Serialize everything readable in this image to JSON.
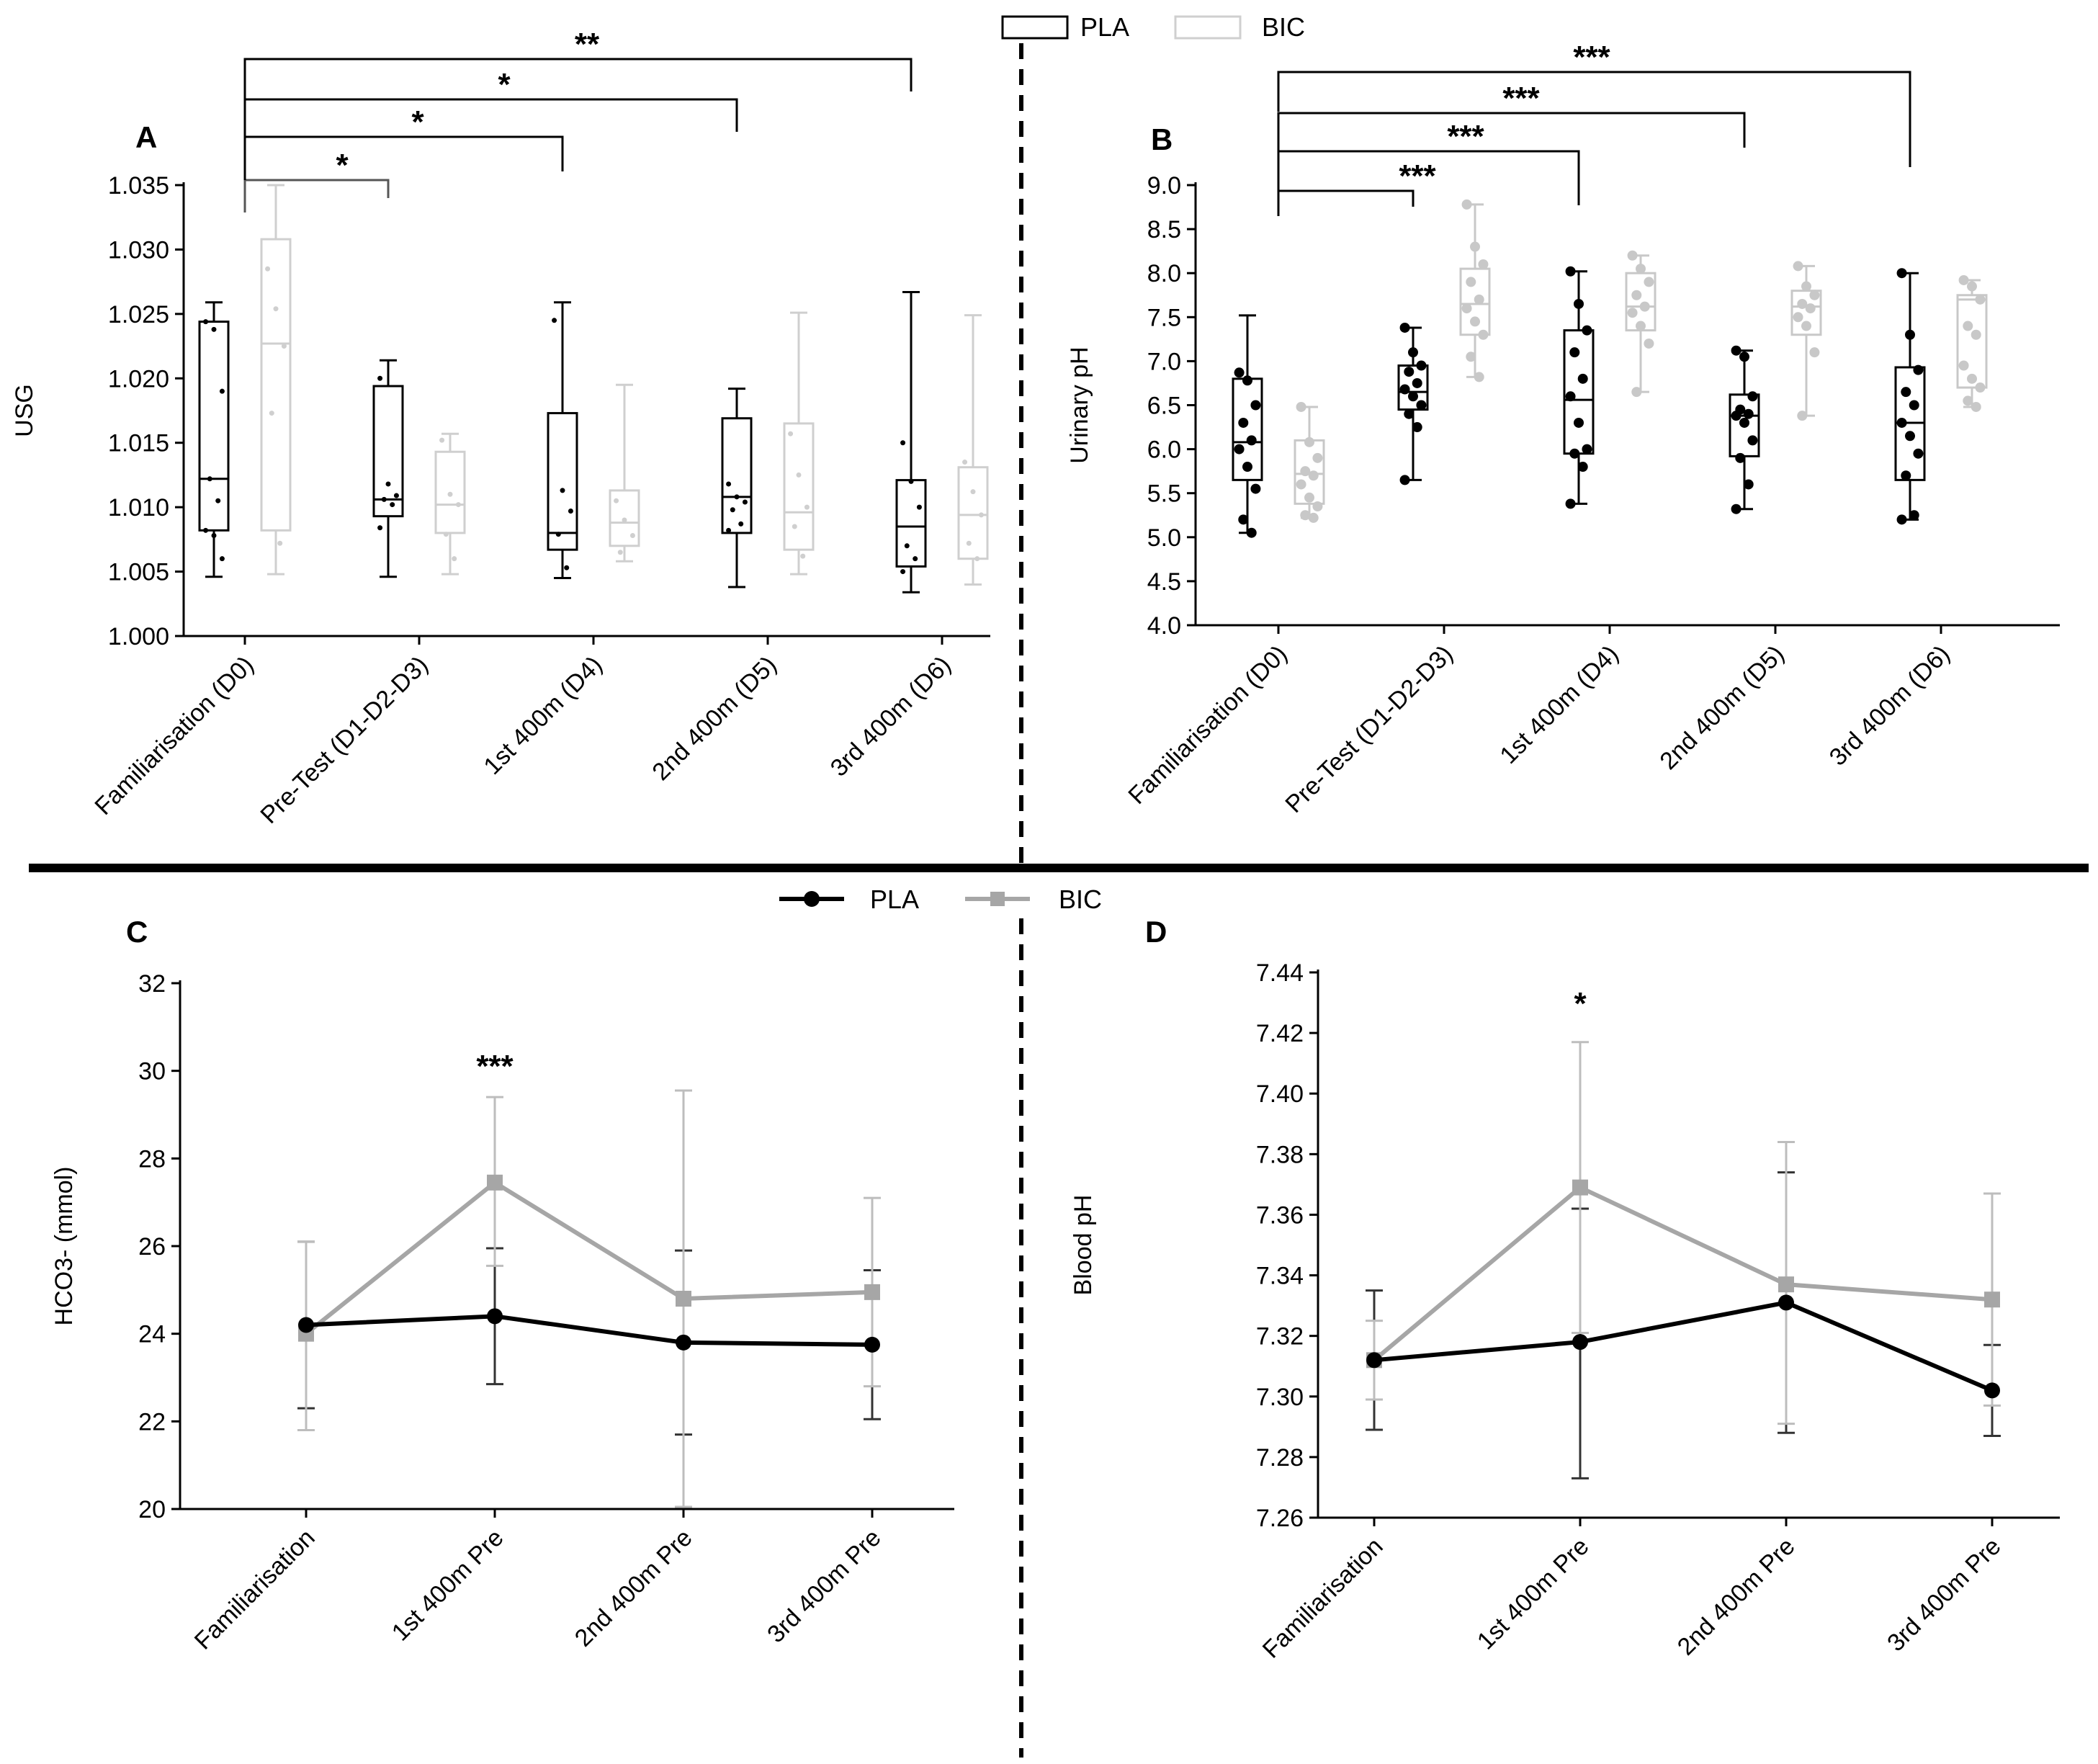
{
  "legend_box": {
    "items": [
      {
        "name": "PLA",
        "color": "#000000"
      },
      {
        "name": "BIC",
        "color": "#cfcfcf"
      }
    ]
  },
  "legend_line": {
    "items": [
      {
        "name": "PLA",
        "color": "#000000",
        "marker": "circle"
      },
      {
        "name": "BIC",
        "color": "#a6a6a6",
        "marker": "square"
      }
    ]
  },
  "chart_data": [
    {
      "id": "A",
      "panel_label": "A",
      "type": "box",
      "ylabel": "USG",
      "xlabel": "",
      "ylim": [
        1.0,
        1.035
      ],
      "yticks": [
        "1.000",
        "1.005",
        "1.010",
        "1.015",
        "1.020",
        "1.025",
        "1.030",
        "1.035"
      ],
      "categories": [
        "Familiarisation (D0)",
        "Pre-Test (D1-D2-D3)",
        "1st 400m (D4)",
        "2nd 400m (D5)",
        "3rd 400m (D6)"
      ],
      "series": [
        {
          "name": "PLA",
          "color": "#000000",
          "boxes": [
            {
              "min": 1.0046,
              "q1": 1.0082,
              "median": 1.0122,
              "q3": 1.0244,
              "max": 1.0259,
              "points": [
                1.0244,
                1.0238,
                1.019,
                1.0122,
                1.0105,
                1.0082,
                1.0078,
                1.006
              ]
            },
            {
              "min": 1.0046,
              "q1": 1.0093,
              "median": 1.0106,
              "q3": 1.0194,
              "max": 1.0214,
              "points": [
                1.02,
                1.0118,
                1.0109,
                1.0106,
                1.0102,
                1.0084
              ]
            },
            {
              "min": 1.0045,
              "q1": 1.0067,
              "median": 1.008,
              "q3": 1.0173,
              "max": 1.0259,
              "points": [
                1.0245,
                1.0113,
                1.0097,
                1.0079,
                1.0053
              ]
            },
            {
              "min": 1.0038,
              "q1": 1.008,
              "median": 1.0108,
              "q3": 1.0169,
              "max": 1.0192,
              "points": [
                1.0118,
                1.0108,
                1.0104,
                1.0098,
                1.0087,
                1.0082
              ]
            },
            {
              "min": 1.0034,
              "q1": 1.0054,
              "median": 1.0085,
              "q3": 1.0121,
              "max": 1.0267,
              "points": [
                1.015,
                1.012,
                1.01,
                1.007,
                1.006,
                1.005
              ]
            }
          ]
        },
        {
          "name": "BIC",
          "color": "#cfcfcf",
          "boxes": [
            {
              "min": 1.0048,
              "q1": 1.0082,
              "median": 1.0227,
              "q3": 1.0308,
              "max": 1.035,
              "points": [
                1.0285,
                1.0254,
                1.0225,
                1.0173,
                1.0072
              ]
            },
            {
              "min": 1.0048,
              "q1": 1.008,
              "median": 1.0102,
              "q3": 1.0143,
              "max": 1.0157,
              "points": [
                1.0152,
                1.011,
                1.0102,
                1.0079,
                1.006
              ]
            },
            {
              "min": 1.0058,
              "q1": 1.007,
              "median": 1.0088,
              "q3": 1.0113,
              "max": 1.0195,
              "points": [
                1.0105,
                1.009,
                1.0078,
                1.0065
              ]
            },
            {
              "min": 1.0048,
              "q1": 1.0067,
              "median": 1.0096,
              "q3": 1.0165,
              "max": 1.0251,
              "points": [
                1.0157,
                1.0125,
                1.01,
                1.0085,
                1.0062
              ]
            },
            {
              "min": 1.004,
              "q1": 1.006,
              "median": 1.0094,
              "q3": 1.0131,
              "max": 1.0249,
              "points": [
                1.0135,
                1.0112,
                1.0094,
                1.0072,
                1.006
              ]
            }
          ]
        }
      ],
      "annotations": [
        {
          "from": 0,
          "to": 1,
          "label": "*"
        },
        {
          "from": 0,
          "to": 2,
          "label": "*"
        },
        {
          "from": 0,
          "to": 3,
          "label": "*"
        },
        {
          "from": 0,
          "to": 4,
          "label": "**"
        }
      ]
    },
    {
      "id": "B",
      "panel_label": "B",
      "type": "box",
      "ylabel": "Urinary pH",
      "xlabel": "",
      "ylim": [
        4.0,
        9.0
      ],
      "yticks": [
        "4.0",
        "4.5",
        "5.0",
        "5.5",
        "6.0",
        "6.5",
        "7.0",
        "7.5",
        "8.0",
        "8.5",
        "9.0"
      ],
      "categories": [
        "Familiarisation (D0)",
        "Pre-Test (D1-D2-D3)",
        "1st 400m (D4)",
        "2nd 400m (D5)",
        "3rd 400m (D6)"
      ],
      "series": [
        {
          "name": "PLA",
          "color": "#000000",
          "boxes": [
            {
              "min": 5.05,
              "q1": 5.65,
              "median": 6.08,
              "q3": 6.8,
              "max": 7.52,
              "points": [
                6.87,
                6.78,
                6.5,
                6.3,
                6.1,
                6.0,
                5.8,
                5.55,
                5.2,
                5.05
              ]
            },
            {
              "min": 5.65,
              "q1": 6.45,
              "median": 6.65,
              "q3": 6.95,
              "max": 7.38,
              "points": [
                7.38,
                7.1,
                6.95,
                6.88,
                6.75,
                6.68,
                6.6,
                6.5,
                6.4,
                6.25,
                5.65
              ]
            },
            {
              "min": 5.38,
              "q1": 5.95,
              "median": 6.56,
              "q3": 7.35,
              "max": 8.02,
              "points": [
                8.02,
                7.65,
                7.35,
                7.1,
                6.8,
                6.6,
                6.3,
                6.0,
                5.95,
                5.8,
                5.38
              ]
            },
            {
              "min": 5.32,
              "q1": 5.92,
              "median": 6.38,
              "q3": 6.62,
              "max": 7.12,
              "points": [
                7.12,
                7.05,
                6.6,
                6.45,
                6.4,
                6.38,
                6.3,
                6.1,
                5.9,
                5.6,
                5.32
              ]
            },
            {
              "min": 5.2,
              "q1": 5.65,
              "median": 6.3,
              "q3": 6.93,
              "max": 8.0,
              "points": [
                8.0,
                7.3,
                6.9,
                6.65,
                6.5,
                6.3,
                6.15,
                5.95,
                5.7,
                5.25,
                5.2
              ]
            }
          ]
        },
        {
          "name": "BIC",
          "color": "#c8c8c8",
          "boxes": [
            {
              "min": 5.22,
              "q1": 5.38,
              "median": 5.72,
              "q3": 6.1,
              "max": 6.48,
              "points": [
                6.48,
                6.08,
                5.9,
                5.75,
                5.7,
                5.6,
                5.45,
                5.35,
                5.25,
                5.22
              ]
            },
            {
              "min": 6.82,
              "q1": 7.3,
              "median": 7.65,
              "q3": 8.05,
              "max": 8.78,
              "points": [
                8.78,
                8.3,
                8.1,
                7.9,
                7.7,
                7.6,
                7.45,
                7.3,
                7.05,
                6.82
              ]
            },
            {
              "min": 6.65,
              "q1": 7.35,
              "median": 7.62,
              "q3": 8.0,
              "max": 8.2,
              "points": [
                8.2,
                8.05,
                7.9,
                7.75,
                7.62,
                7.55,
                7.4,
                7.2,
                6.65
              ]
            },
            {
              "min": 6.38,
              "q1": 7.3,
              "median": 7.62,
              "q3": 7.8,
              "max": 8.08,
              "points": [
                8.08,
                7.85,
                7.75,
                7.65,
                7.6,
                7.5,
                7.4,
                7.1,
                6.38
              ]
            },
            {
              "min": 6.48,
              "q1": 6.7,
              "median": 7.7,
              "q3": 7.75,
              "max": 7.92,
              "points": [
                7.92,
                7.85,
                7.7,
                7.4,
                7.3,
                6.95,
                6.8,
                6.7,
                6.55,
                6.48
              ]
            }
          ]
        }
      ],
      "annotations": [
        {
          "from": 0,
          "to": 1,
          "label": "***"
        },
        {
          "from": 0,
          "to": 2,
          "label": "***"
        },
        {
          "from": 0,
          "to": 3,
          "label": "***"
        },
        {
          "from": 0,
          "to": 4,
          "label": "***"
        }
      ]
    },
    {
      "id": "C",
      "panel_label": "C",
      "type": "line",
      "ylabel": "HCO3- (mmol)",
      "xlabel": "",
      "ylim": [
        20,
        32
      ],
      "yticks": [
        "20",
        "22",
        "24",
        "26",
        "28",
        "30",
        "32"
      ],
      "categories": [
        "Familiarisation",
        "1st 400m Pre",
        "2nd 400m Pre",
        "3rd 400m Pre"
      ],
      "series": [
        {
          "name": "PLA",
          "color": "#000000",
          "marker": "circle",
          "values": [
            24.2,
            24.4,
            23.8,
            23.75
          ],
          "err_low": [
            22.3,
            22.85,
            21.7,
            22.05
          ],
          "err_high": [
            26.1,
            25.95,
            25.9,
            25.45
          ]
        },
        {
          "name": "BIC",
          "color": "#a6a6a6",
          "marker": "square",
          "values": [
            24.0,
            27.45,
            24.8,
            24.95
          ],
          "err_low": [
            21.8,
            25.55,
            20.05,
            22.8
          ],
          "err_high": [
            26.1,
            29.4,
            29.55,
            27.1
          ]
        }
      ],
      "annotations": [
        {
          "at": 1,
          "value": 30.0,
          "label": "***"
        }
      ]
    },
    {
      "id": "D",
      "panel_label": "D",
      "type": "line",
      "ylabel": "Blood pH",
      "xlabel": "",
      "ylim": [
        7.26,
        7.44
      ],
      "yticks": [
        "7.26",
        "7.28",
        "7.30",
        "7.32",
        "7.34",
        "7.36",
        "7.38",
        "7.40",
        "7.42",
        "7.44"
      ],
      "categories": [
        "Familiarisation",
        "1st 400m Pre",
        "2nd 400m Pre",
        "3rd 400m Pre"
      ],
      "series": [
        {
          "name": "PLA",
          "color": "#000000",
          "marker": "circle",
          "values": [
            7.312,
            7.318,
            7.331,
            7.302
          ],
          "err_low": [
            7.289,
            7.273,
            7.288,
            7.287
          ],
          "err_high": [
            7.335,
            7.362,
            7.374,
            7.317
          ]
        },
        {
          "name": "BIC",
          "color": "#a6a6a6",
          "marker": "square",
          "values": [
            7.312,
            7.369,
            7.337,
            7.332
          ],
          "err_low": [
            7.299,
            7.321,
            7.291,
            7.297
          ],
          "err_high": [
            7.325,
            7.417,
            7.384,
            7.367
          ]
        }
      ],
      "annotations": [
        {
          "at": 1,
          "value": 7.423,
          "label": "*"
        }
      ]
    }
  ]
}
